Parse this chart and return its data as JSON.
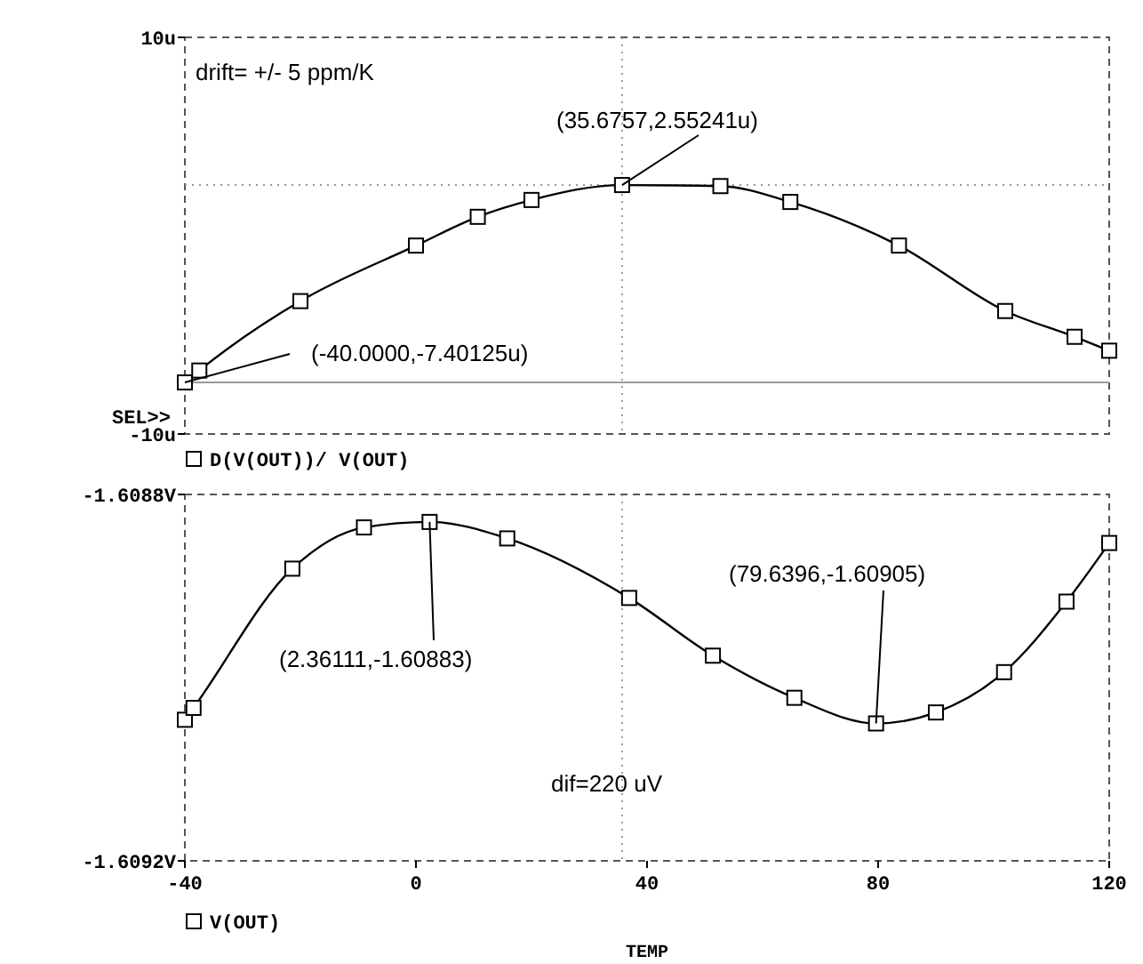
{
  "chart_data": [
    {
      "type": "line",
      "xlim": [
        -40,
        120
      ],
      "ylim": [
        -10,
        10
      ],
      "yticks": [
        {
          "value": -10,
          "label": "-10u"
        },
        {
          "value": 10,
          "label": "10u"
        }
      ],
      "tick_labels": "y",
      "marker": "square",
      "line_style": "solid",
      "legend": "bottom",
      "x": [
        -40,
        -37.5,
        -20,
        0,
        10.7,
        20,
        35.6757,
        52.7,
        64.8,
        83.6,
        102,
        114,
        120
      ],
      "series": [
        {
          "name": "D(V(OUT))/ V(OUT)",
          "color": "#000000",
          "values": [
            -7.40125,
            -6.8,
            -3.3,
            -0.5,
            0.95,
            1.8,
            2.55241,
            2.5,
            1.7,
            -0.5,
            -3.8,
            -5.1,
            -5.8
          ]
        }
      ],
      "ref_lines": [
        {
          "axis": "x",
          "value": 35.6757,
          "line_style": "dotted",
          "color": "#999999"
        },
        {
          "axis": "y",
          "value": 2.55241,
          "line_style": "dotted",
          "color": "#999999"
        },
        {
          "axis": "y",
          "value": -7.40125,
          "line_style": "solid",
          "color": "#999999"
        }
      ],
      "annotations": [
        "drift= +/- 5 ppm/K",
        {
          "text": "(35.6757,2.55241u)",
          "x": 35.6757,
          "y": 2.55241
        },
        {
          "text": "(-40.0000,-7.40125u)",
          "x": -40,
          "y": -7.40125
        },
        "SEL>>"
      ]
    },
    {
      "type": "line",
      "xlim": [
        -40,
        120
      ],
      "ylim": [
        -1.6092,
        -1.6088
      ],
      "xticks": [
        -40,
        0,
        40,
        80,
        120
      ],
      "yticks": [
        {
          "value": -1.6092,
          "label": "-1.6092V"
        },
        {
          "value": -1.6088,
          "label": "-1.6088V"
        }
      ],
      "marker": "square",
      "line_style": "solid",
      "legend": "bottom",
      "xlabel": "TEMP",
      "x": [
        -40,
        -38.5,
        -21.4,
        -9,
        2.36111,
        15.8,
        36.9,
        51.4,
        65.5,
        79.6396,
        90,
        101.8,
        112.6,
        120
      ],
      "series": [
        {
          "name": "V(OUT)",
          "color": "#000000",
          "values": [
            -1.609046,
            -1.609033,
            -1.608881,
            -1.608836,
            -1.60883,
            -1.608848,
            -1.608913,
            -1.608976,
            -1.609022,
            -1.60905,
            -1.609038,
            -1.608994,
            -1.608917,
            -1.608853
          ]
        }
      ],
      "ref_lines": [
        {
          "axis": "x",
          "value": 35.6757,
          "line_style": "dotted",
          "color": "#999999"
        }
      ],
      "annotations": [
        {
          "text": "(2.36111,-1.60883)",
          "x": 2.36111,
          "y": -1.60883
        },
        {
          "text": "(79.6396,-1.60905)",
          "x": 79.6396,
          "y": -1.60905
        },
        "dif=220 uV"
      ]
    }
  ]
}
